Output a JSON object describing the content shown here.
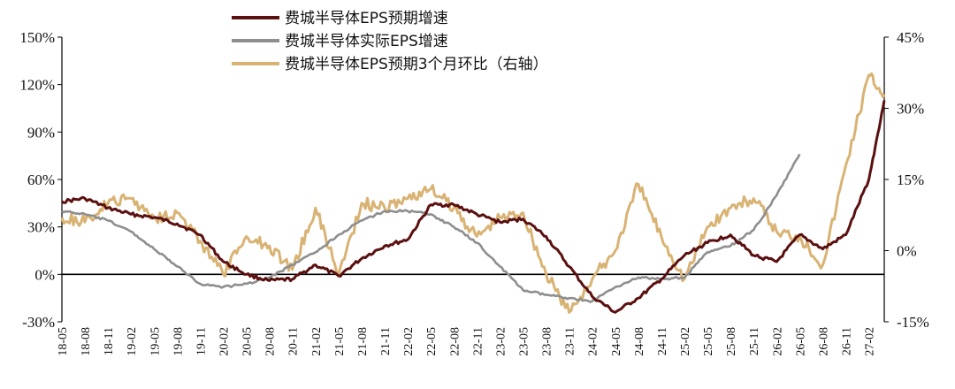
{
  "chart_data": {
    "type": "line",
    "title": "",
    "xlabel": "",
    "ylabel": "",
    "legend_position": "top-center",
    "grid": false,
    "x_range": [
      "2018-05",
      "2027-04"
    ],
    "x_tick_labels": [
      "18-05",
      "18-08",
      "18-11",
      "19-02",
      "19-05",
      "19-08",
      "19-11",
      "20-02",
      "20-05",
      "20-08",
      "20-11",
      "21-02",
      "21-05",
      "21-08",
      "21-11",
      "22-02",
      "22-05",
      "22-08",
      "22-11",
      "23-02",
      "23-05",
      "23-08",
      "23-11",
      "24-02",
      "24-05",
      "24-08",
      "24-11",
      "25-02",
      "25-05",
      "25-08",
      "25-11",
      "26-02",
      "26-05",
      "26-08",
      "26-11",
      "27-02"
    ],
    "y_left": {
      "min": -30,
      "max": 150,
      "ticks": [
        "-30%",
        "0%",
        "30%",
        "60%",
        "90%",
        "120%",
        "150%"
      ]
    },
    "y_right": {
      "min": -15,
      "max": 45,
      "ticks": [
        "-15%",
        "0%",
        "15%",
        "30%",
        "45%"
      ]
    },
    "series": [
      {
        "name": "费城半导体EPS预期增速",
        "color": "#5b1010",
        "axis": "left",
        "x": [
          "2018-05",
          "2018-08",
          "2018-11",
          "2019-02",
          "2019-05",
          "2019-08",
          "2019-11",
          "2020-02",
          "2020-05",
          "2020-08",
          "2020-11",
          "2021-02",
          "2021-05",
          "2021-08",
          "2021-11",
          "2022-02",
          "2022-05",
          "2022-08",
          "2022-11",
          "2023-02",
          "2023-05",
          "2023-08",
          "2023-11",
          "2024-02",
          "2024-05",
          "2024-08",
          "2024-11",
          "2025-02",
          "2025-05",
          "2025-08",
          "2025-11",
          "2026-02",
          "2026-05",
          "2026-08",
          "2026-11",
          "2027-02",
          "2027-04"
        ],
        "values": [
          46,
          48,
          42,
          38,
          36,
          32,
          25,
          8,
          0,
          -4,
          -3,
          6,
          -1,
          10,
          18,
          22,
          44,
          44,
          38,
          33,
          35,
          24,
          5,
          -14,
          -24,
          -15,
          -3,
          12,
          20,
          25,
          12,
          8,
          25,
          16,
          25,
          60,
          110
        ]
      },
      {
        "name": "费城半导体实际EPS增速",
        "color": "#8e8e8e",
        "axis": "left",
        "x": [
          "2018-05",
          "2018-08",
          "2018-11",
          "2019-02",
          "2019-05",
          "2019-08",
          "2019-11",
          "2020-02",
          "2020-05",
          "2020-08",
          "2020-11",
          "2021-02",
          "2021-05",
          "2021-08",
          "2021-11",
          "2022-02",
          "2022-05",
          "2022-08",
          "2022-11",
          "2023-02",
          "2023-05",
          "2023-08",
          "2023-11",
          "2024-02",
          "2024-05",
          "2024-08",
          "2024-11",
          "2025-02",
          "2025-05",
          "2025-08",
          "2025-11",
          "2026-02",
          "2026-05"
        ],
        "values": [
          40,
          38,
          34,
          27,
          16,
          5,
          -6,
          -8,
          -6,
          -2,
          6,
          14,
          25,
          34,
          40,
          40,
          38,
          30,
          20,
          5,
          -10,
          -13,
          -15,
          -17,
          -8,
          -2,
          -3,
          -2,
          14,
          18,
          28,
          50,
          76
        ]
      },
      {
        "name": "费城半导体EPS预期3个月环比（右轴）",
        "color": "#d9b374",
        "axis": "right",
        "x": [
          "2018-05",
          "2018-08",
          "2018-11",
          "2019-02",
          "2019-05",
          "2019-08",
          "2019-11",
          "2020-02",
          "2020-05",
          "2020-08",
          "2020-11",
          "2021-02",
          "2021-05",
          "2021-08",
          "2021-11",
          "2022-02",
          "2022-05",
          "2022-08",
          "2022-11",
          "2023-02",
          "2023-05",
          "2023-08",
          "2023-11",
          "2024-02",
          "2024-05",
          "2024-08",
          "2024-11",
          "2025-02",
          "2025-05",
          "2025-08",
          "2025-11",
          "2026-02",
          "2026-05",
          "2026-08",
          "2026-11",
          "2027-02",
          "2027-04"
        ],
        "values": [
          7,
          6,
          10,
          11,
          7,
          8,
          2,
          -5,
          3,
          1,
          -4,
          9,
          -5,
          10,
          9,
          11,
          13,
          9,
          3,
          7,
          8,
          -5,
          -13,
          -6,
          0,
          14,
          3,
          -6,
          5,
          9,
          11,
          4,
          3,
          -3,
          18,
          37,
          33
        ]
      }
    ]
  }
}
